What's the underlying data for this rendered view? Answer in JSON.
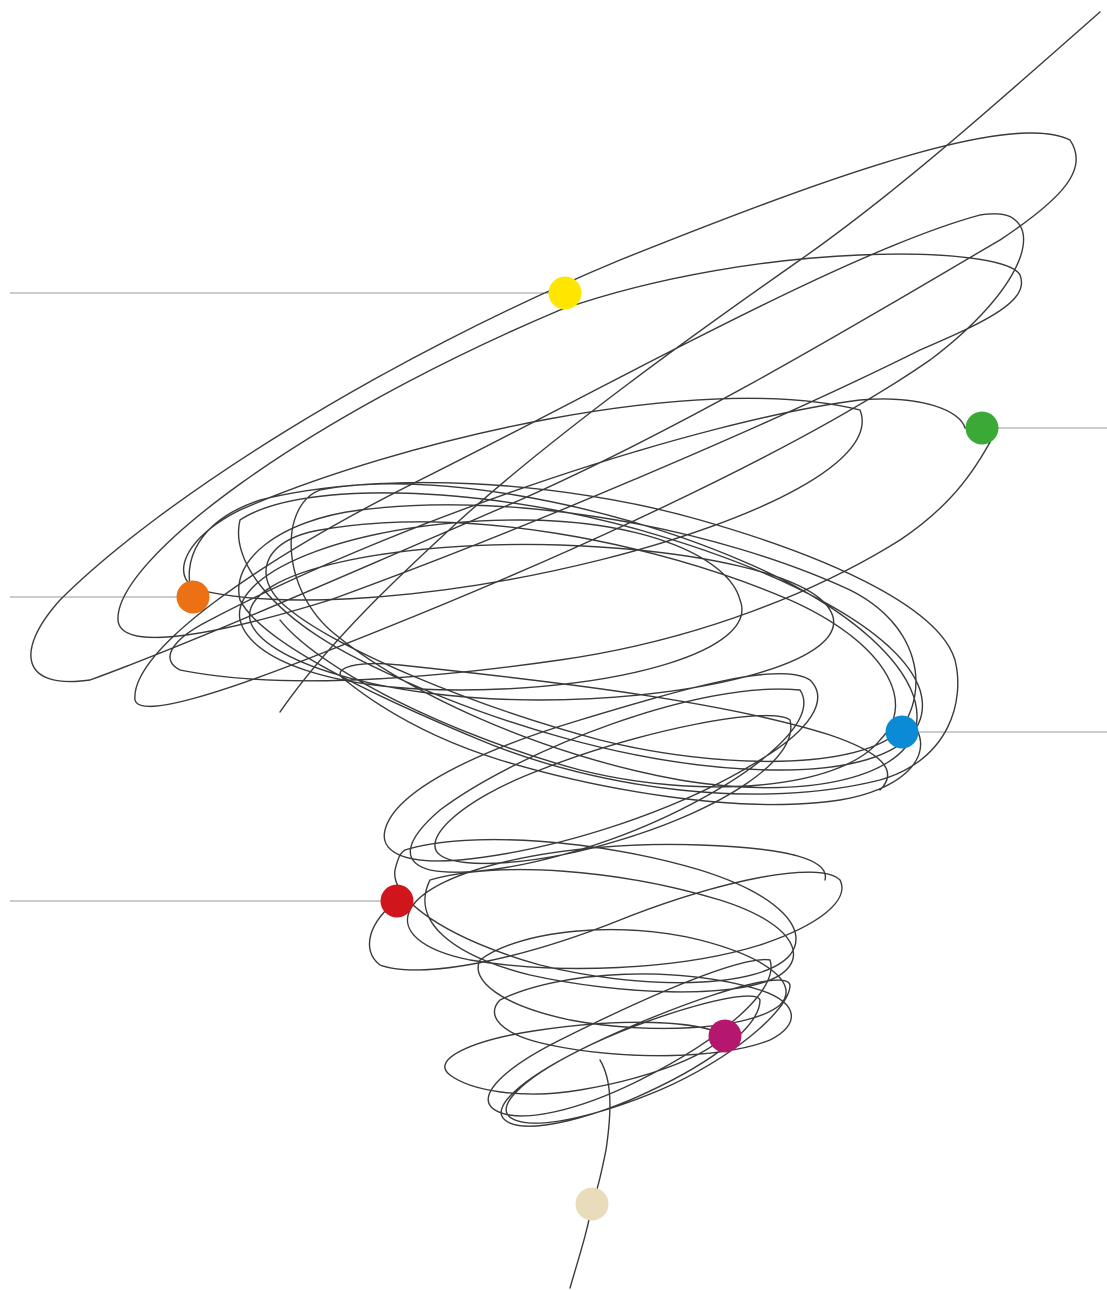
{
  "diagram": {
    "background": "#ffffff",
    "line_color": "#3a3a3a",
    "leader_color": "#9a9a9a",
    "markers": [
      {
        "name": "yellow-marker",
        "color": "#ffe600"
      },
      {
        "name": "green-marker",
        "color": "#3aa935"
      },
      {
        "name": "orange-marker",
        "color": "#ec7014"
      },
      {
        "name": "blue-marker",
        "color": "#0b8ad6"
      },
      {
        "name": "red-marker",
        "color": "#d0151c"
      },
      {
        "name": "magenta-marker",
        "color": "#b5176f"
      },
      {
        "name": "beige-marker",
        "color": "#e9dcbb"
      }
    ]
  }
}
